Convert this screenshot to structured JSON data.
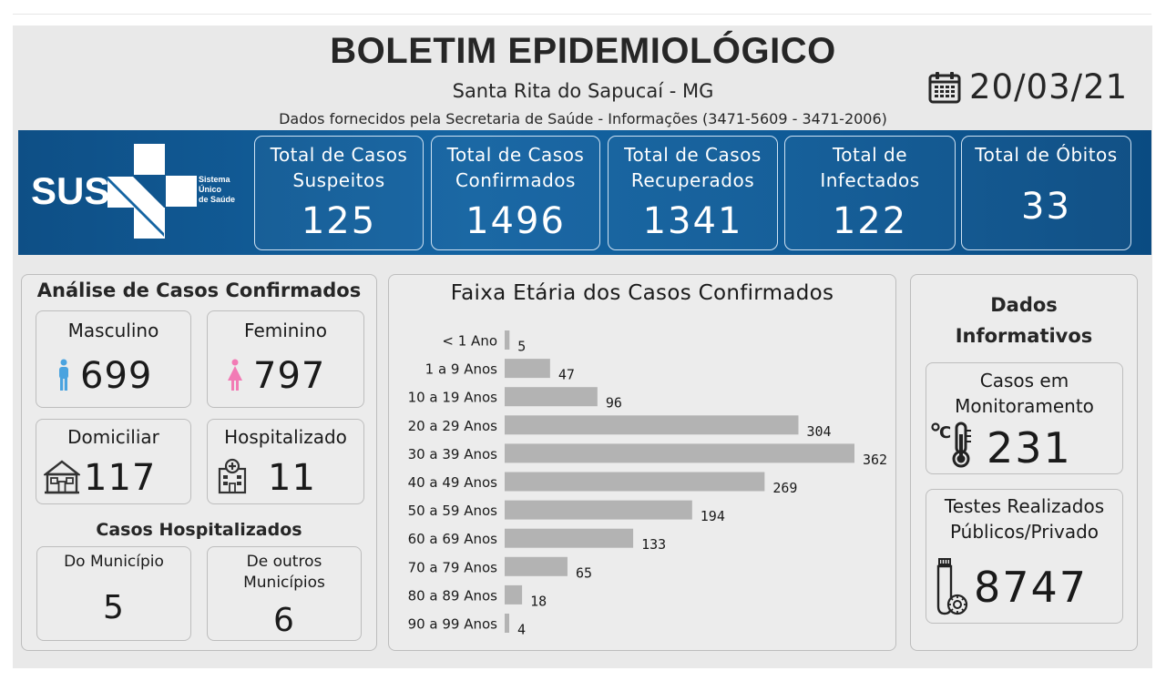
{
  "header": {
    "title": "BOLETIM EPIDEMIOLÓGICO",
    "city": "Santa Rita do Sapucaí - MG",
    "source": "Dados fornecidos pela Secretaria de Saúde - Informações (3471-5609 - 3471-2006)",
    "date": "20/03/21",
    "date_icon": "calendar-icon"
  },
  "logo": {
    "text": "SUS",
    "line1": "Sistema",
    "line2": "Único",
    "line3": "de Saúde"
  },
  "kpis": [
    {
      "label": "Total de Casos\nSuspeitos",
      "value": "125"
    },
    {
      "label": "Total de Casos\nConfirmados",
      "value": "1496"
    },
    {
      "label": "Total de Casos\nRecuperados",
      "value": "1341"
    },
    {
      "label": "Total de\nInfectados",
      "value": "122"
    },
    {
      "label": "Total de Óbitos",
      "value": "33"
    }
  ],
  "analysis": {
    "title": "Análise de Casos Confirmados",
    "male_label": "Masculino",
    "male_value": "699",
    "male_icon": "male-person-icon",
    "female_label": "Feminino",
    "female_value": "797",
    "female_icon": "female-person-icon",
    "home_label": "Domiciliar",
    "home_value": "117",
    "home_icon": "house-icon",
    "hosp_label": "Hospitalizado",
    "hosp_value": "11",
    "hosp_icon": "hospital-icon",
    "hosp_section_title": "Casos Hospitalizados",
    "municipio_label": "Do Município",
    "municipio_value": "5",
    "outros_label": "De outros\nMunicípios",
    "outros_value": "6"
  },
  "chart_data": {
    "type": "bar",
    "orientation": "horizontal",
    "title": "Faixa Etária dos Casos Confirmados",
    "categories": [
      "< 1 Ano",
      "1 a 9 Anos",
      "10 a 19 Anos",
      "20 a 29 Anos",
      "30 a 39 Anos",
      "40 a 49 Anos",
      "50 a 59 Anos",
      "60 a 69 Anos",
      "70 a 79 Anos",
      "80 a 89 Anos",
      "90 a 99 Anos"
    ],
    "values": [
      5,
      47,
      96,
      304,
      362,
      269,
      194,
      133,
      65,
      18,
      4
    ],
    "bar_color": "#b3b3b3",
    "xlim": [
      0,
      362
    ],
    "grid": false
  },
  "info": {
    "title": "Dados\nInformativos",
    "monitor_label": "Casos em\nMonitoramento",
    "monitor_value": "231",
    "monitor_icon": "thermometer-icon",
    "tests_label": "Testes Realizados\nPúblicos/Privado",
    "tests_value": "8747",
    "tests_icon": "test-tube-virus-icon"
  },
  "colors": {
    "banner": "#1464a2",
    "male": "#4aa3df",
    "female": "#f27bb5"
  }
}
